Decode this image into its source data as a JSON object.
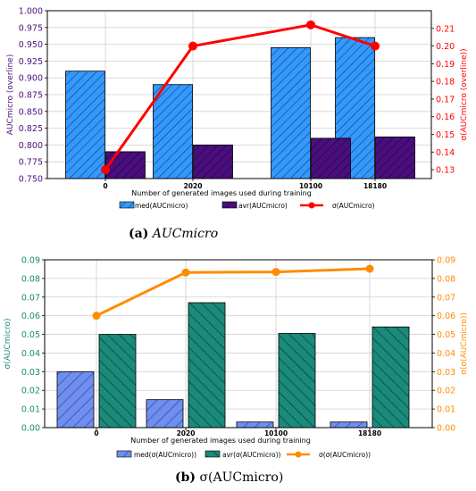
{
  "captions": {
    "a": {
      "tag": "(a)",
      "text": "AUCmicro"
    },
    "b": {
      "tag": "(b)",
      "text": "σ(AUCmicro)"
    }
  },
  "chart_data": [
    {
      "type": "bar",
      "categories": [
        "0",
        "2020",
        "10100",
        "18180"
      ],
      "xlabel": "Number of generated images used during training",
      "ylabel": "AUCmicro (overline)",
      "ylabel_right": "σ(AUCmicro (overline))",
      "ylim": [
        0.75,
        1.0
      ],
      "y_ticks": [
        "0.750",
        "0.775",
        "0.800",
        "0.825",
        "0.850",
        "0.875",
        "0.900",
        "0.925",
        "0.950",
        "0.975",
        "1.000"
      ],
      "y2lim": [
        0.125,
        0.22
      ],
      "y2_ticks": [
        "0.13",
        "0.14",
        "0.15",
        "0.16",
        "0.17",
        "0.18",
        "0.19",
        "0.20",
        "0.21"
      ],
      "grid": true,
      "legend_position": "bottom",
      "series": [
        {
          "name": "med(AUCmicro)",
          "kind": "bar",
          "axis": "left",
          "color": "#3399ff",
          "hatch": true,
          "values": [
            0.91,
            0.89,
            0.945,
            0.96
          ]
        },
        {
          "name": "avr(AUCmicro)",
          "kind": "bar",
          "axis": "left",
          "color": "#4b0e7e",
          "hatch": true,
          "values": [
            0.79,
            0.8,
            0.81,
            0.812
          ]
        },
        {
          "name": "σ(AUCmicro)",
          "kind": "line",
          "axis": "right",
          "color": "#ff0000",
          "values": [
            0.13,
            0.2,
            0.212,
            0.2
          ]
        }
      ],
      "colors": {
        "left_axis": "#4b0e7e",
        "right_axis": "#ff0000"
      }
    },
    {
      "type": "bar",
      "categories": [
        "0",
        "2020",
        "10100",
        "18180"
      ],
      "xlabel": "Number of generated images used during training",
      "ylabel": "σ(AUCmicro)",
      "ylabel_right": "σ(σ(AUCmicro))",
      "ylim": [
        0,
        0.09
      ],
      "y_ticks": [
        "0.00",
        "0.01",
        "0.02",
        "0.03",
        "0.04",
        "0.05",
        "0.06",
        "0.07",
        "0.08",
        "0.09"
      ],
      "y2lim": [
        0,
        0.09
      ],
      "y2_ticks": [
        "0.00",
        "0.01",
        "0.02",
        "0.03",
        "0.04",
        "0.05",
        "0.06",
        "0.07",
        "0.08",
        "0.09"
      ],
      "grid": true,
      "legend_position": "bottom",
      "series": [
        {
          "name": "med(σ(AUCmicro))",
          "kind": "bar",
          "axis": "left",
          "color": "#6f8ff0",
          "hatch": true,
          "values": [
            0.03,
            0.015,
            0.003,
            0.003
          ]
        },
        {
          "name": "avr(σ(AUCmicro))",
          "kind": "bar",
          "axis": "left",
          "color": "#1a8a7a",
          "hatch": true,
          "values": [
            0.05,
            0.067,
            0.0505,
            0.054
          ]
        },
        {
          "name": "σ(σ(AUCmicro))",
          "kind": "line",
          "axis": "right",
          "color": "#ff8c00",
          "values": [
            0.06,
            0.0832,
            0.0835,
            0.0852
          ]
        }
      ],
      "colors": {
        "left_axis": "#1a8a7a",
        "right_axis": "#ff8c00"
      }
    }
  ]
}
